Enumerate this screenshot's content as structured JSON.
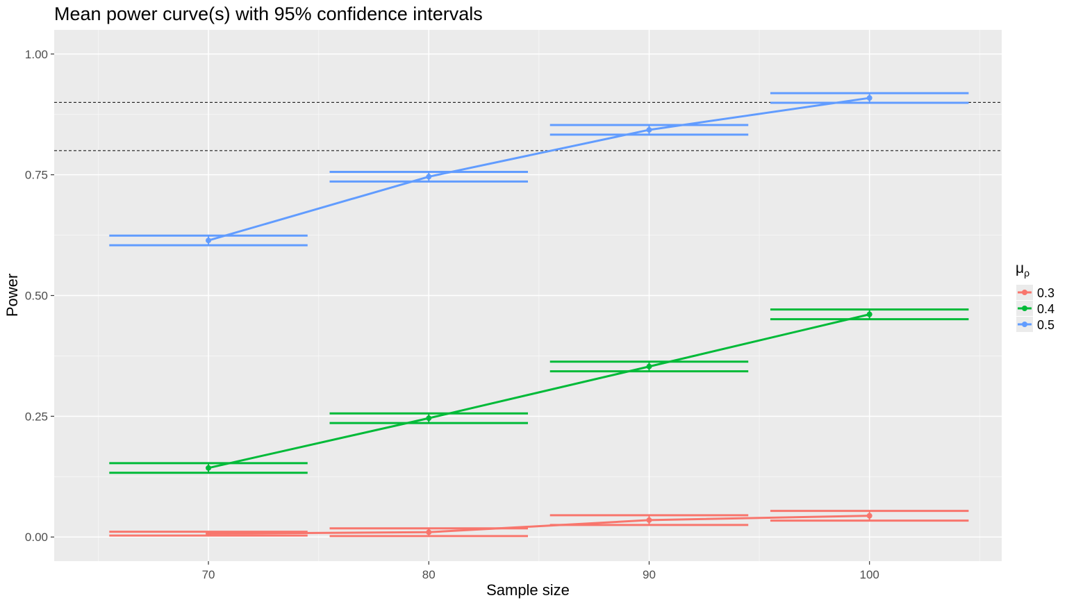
{
  "chart_data": {
    "type": "line",
    "title": "Mean power curve(s) with 95% confidence intervals",
    "xlabel": "Sample size",
    "ylabel": "Power",
    "xlim": [
      63,
      106
    ],
    "ylim": [
      -0.05,
      1.05
    ],
    "xticks": [
      70,
      80,
      90,
      100
    ],
    "xtick_labels": [
      "70",
      "80",
      "90",
      "100"
    ],
    "yticks": [
      0,
      0.25,
      0.5,
      0.75,
      1
    ],
    "ytick_labels": [
      "0.00",
      "0.25",
      "0.50",
      "0.75",
      "1.00"
    ],
    "x_minor_breaks": [
      65,
      75,
      85,
      95,
      105
    ],
    "y_minor_breaks": [
      0.125,
      0.375,
      0.625,
      0.875
    ],
    "reference_lines": [
      0.8,
      0.9
    ],
    "grid": true,
    "legend": {
      "title": "μ",
      "title_subscript": "ρ",
      "position": "right"
    },
    "errorbar_halfwidth": 4.5,
    "series": [
      {
        "name": "0.3",
        "color": "#F8766D",
        "x": [
          70,
          80,
          90,
          100
        ],
        "values": [
          0.007,
          0.01,
          0.035,
          0.044
        ],
        "ci_lower": [
          0.003,
          0.002,
          0.025,
          0.034
        ],
        "ci_upper": [
          0.011,
          0.018,
          0.045,
          0.054
        ]
      },
      {
        "name": "0.4",
        "color": "#00BA38",
        "x": [
          70,
          80,
          90,
          100
        ],
        "values": [
          0.143,
          0.246,
          0.353,
          0.461
        ],
        "ci_lower": [
          0.133,
          0.236,
          0.343,
          0.451
        ],
        "ci_upper": [
          0.153,
          0.256,
          0.363,
          0.471
        ]
      },
      {
        "name": "0.5",
        "color": "#619CFF",
        "x": [
          70,
          80,
          90,
          100
        ],
        "values": [
          0.614,
          0.746,
          0.843,
          0.909
        ],
        "ci_lower": [
          0.604,
          0.736,
          0.833,
          0.899
        ],
        "ci_upper": [
          0.624,
          0.756,
          0.853,
          0.919
        ]
      }
    ]
  }
}
